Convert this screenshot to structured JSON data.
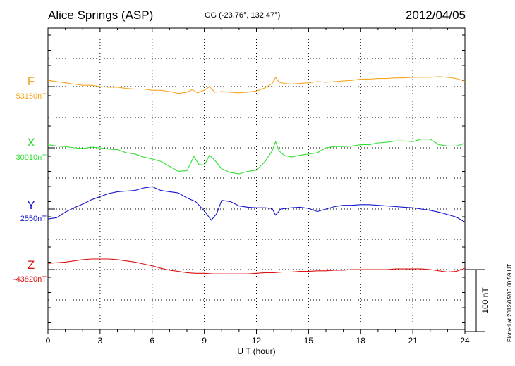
{
  "header": {
    "title": "Alice Springs (ASP)",
    "coords": "GG (-23.76°, 132.47°)",
    "date": "2012/04/05"
  },
  "plotted_note": "Plotted at 2012/05/06 00:59 UT",
  "chart_data": {
    "type": "line",
    "title": "Alice Springs (ASP)",
    "xlabel": "U T (hour)",
    "ylabel": "",
    "xlim": [
      0,
      24
    ],
    "xticks": [
      0,
      3,
      6,
      9,
      12,
      15,
      18,
      21,
      24
    ],
    "grid": true,
    "scale_bar_label": "100 nT",
    "scale_bar_nT": 100,
    "series": [
      {
        "name": "F",
        "baseline": "53150nT",
        "color": "#f5a623",
        "offset_nT": 0,
        "x": [
          0,
          0.5,
          1,
          1.5,
          2,
          2.5,
          3,
          3.5,
          4,
          4.5,
          5,
          5.5,
          6,
          6.5,
          7,
          7.5,
          8,
          8.3,
          8.6,
          9,
          9.3,
          9.6,
          10,
          10.5,
          11,
          11.5,
          12,
          12.5,
          12.9,
          13.1,
          13.3,
          13.6,
          14,
          14.5,
          15,
          15.5,
          16,
          16.5,
          17,
          17.5,
          18,
          18.5,
          19,
          19.5,
          20,
          20.5,
          21,
          21.5,
          22,
          22.5,
          23,
          23.5,
          24
        ],
        "values": [
          10,
          8,
          6,
          4,
          2,
          2,
          0,
          -1,
          -1,
          -3,
          -4,
          -4,
          -6,
          -6,
          -8,
          -11,
          -9,
          -5,
          -10,
          -6,
          0,
          -9,
          -8,
          -9,
          -10,
          -9,
          -7,
          -2,
          5,
          15,
          7,
          5,
          4,
          5,
          6,
          8,
          7,
          8,
          9,
          10,
          12,
          12,
          13,
          13,
          14,
          14,
          15,
          15,
          15,
          16,
          15,
          13,
          9
        ]
      },
      {
        "name": "X",
        "baseline": "30010nT",
        "color": "#33dd33",
        "offset_nT": 0,
        "x": [
          0,
          0.5,
          1,
          1.5,
          2,
          2.5,
          3,
          3.5,
          4,
          4.5,
          5,
          5.5,
          6,
          6.5,
          7,
          7.5,
          8,
          8.4,
          8.7,
          9,
          9.3,
          9.6,
          10,
          10.5,
          11,
          11.5,
          12,
          12.5,
          12.9,
          13.1,
          13.3,
          13.6,
          14,
          14.5,
          15,
          15.5,
          16,
          16.5,
          17,
          17.5,
          18,
          18.5,
          19,
          19.5,
          20,
          20.5,
          21,
          21.5,
          22,
          22.5,
          23,
          23.5,
          24
        ],
        "values": [
          5,
          3,
          2,
          0,
          -1,
          1,
          0,
          -2,
          -3,
          -8,
          -10,
          -15,
          -18,
          -22,
          -30,
          -38,
          -37,
          -14,
          -27,
          -28,
          -12,
          -20,
          -34,
          -40,
          -42,
          -38,
          -36,
          -22,
          -5,
          10,
          -5,
          -12,
          -15,
          -12,
          -10,
          -8,
          0,
          2,
          2,
          3,
          5,
          5,
          8,
          9,
          11,
          11,
          10,
          14,
          14,
          5,
          3,
          3,
          7
        ]
      },
      {
        "name": "Y",
        "baseline": "2550nT",
        "color": "#1515cc",
        "offset_nT": 0,
        "x": [
          0,
          0.5,
          1,
          1.5,
          2,
          2.5,
          3,
          3.5,
          4,
          4.5,
          5,
          5.5,
          6,
          6.5,
          7,
          7.5,
          8,
          8.5,
          9,
          9.4,
          9.7,
          10,
          10.5,
          11,
          11.5,
          12,
          12.5,
          12.9,
          13.1,
          13.4,
          14,
          14.5,
          15,
          15.5,
          16,
          16.5,
          17,
          17.5,
          18,
          18.5,
          19,
          19.5,
          20,
          20.5,
          21,
          21.5,
          22,
          22.5,
          23,
          23.5,
          24
        ],
        "values": [
          -16,
          -14,
          -5,
          2,
          8,
          15,
          20,
          25,
          28,
          29,
          30,
          34,
          36,
          30,
          28,
          26,
          18,
          12,
          -3,
          -18,
          -8,
          14,
          12,
          5,
          3,
          2,
          2,
          1,
          -10,
          0,
          2,
          3,
          1,
          -4,
          0,
          4,
          6,
          6,
          7,
          7,
          6,
          5,
          4,
          3,
          2,
          0,
          -2,
          -5,
          -9,
          -13,
          -21
        ]
      },
      {
        "name": "Z",
        "baseline": "-43820nT",
        "color": "#dd1111",
        "offset_nT": 0,
        "x": [
          0,
          0.5,
          1,
          1.5,
          2,
          2.5,
          3,
          3.5,
          4,
          4.5,
          5,
          5.5,
          6,
          6.5,
          7,
          7.5,
          8,
          8.5,
          9,
          9.5,
          10,
          10.5,
          11,
          11.5,
          12,
          12.5,
          13,
          13.5,
          14,
          14.5,
          15,
          15.5,
          16,
          16.5,
          17,
          17.5,
          18,
          18.5,
          19,
          19.5,
          20,
          20.5,
          21,
          21.5,
          22,
          22.5,
          23,
          23.5,
          24
        ],
        "values": [
          10,
          11,
          12,
          14,
          16,
          17,
          17,
          17,
          16,
          14,
          12,
          9,
          6,
          2,
          -1,
          -3,
          -5,
          -6,
          -6,
          -7,
          -7,
          -7,
          -7,
          -7,
          -6,
          -5,
          -5,
          -4,
          -4,
          -3,
          -3,
          -2,
          -2,
          -1,
          -1,
          0,
          0,
          0,
          0,
          0,
          1,
          1,
          1,
          1,
          0,
          -2,
          -4,
          -3,
          2
        ]
      }
    ]
  }
}
